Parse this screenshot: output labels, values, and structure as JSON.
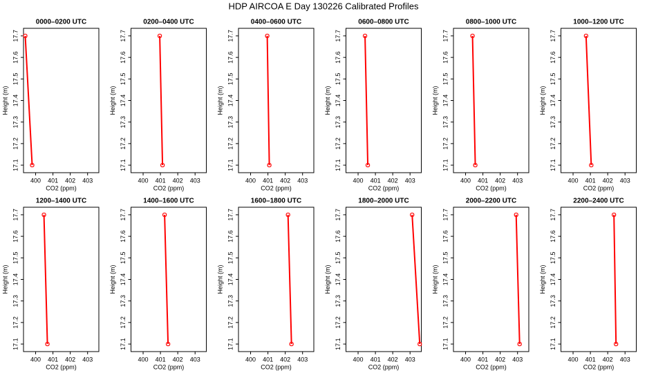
{
  "title": "HDP AIRCOA E  Day 130226  Calibrated Profiles",
  "chart_data": [
    {
      "type": "line",
      "title": "0000–0200 UTC",
      "x_label": "CO2 (ppm)",
      "y_label": "Height (m)",
      "series": [
        {
          "color": "#ff0000",
          "x": [
            399.4,
            399.8
          ],
          "values": [
            17.7,
            17.1
          ]
        }
      ],
      "xlim": [
        399.3,
        403.65
      ],
      "ylim": [
        17.065,
        17.735
      ],
      "xticks": [
        400,
        401,
        402,
        403
      ],
      "yticks": [
        17.1,
        17.2,
        17.3,
        17.4,
        17.5,
        17.6,
        17.7
      ]
    },
    {
      "type": "line",
      "title": "0200–0400 UTC",
      "x_label": "CO2 (ppm)",
      "y_label": "Height (m)",
      "series": [
        {
          "color": "#ff0000",
          "x": [
            400.96,
            401.12
          ],
          "values": [
            17.7,
            17.1
          ]
        }
      ],
      "xlim": [
        399.3,
        403.65
      ],
      "ylim": [
        17.065,
        17.735
      ],
      "xticks": [
        400,
        401,
        402,
        403
      ],
      "yticks": [
        17.1,
        17.2,
        17.3,
        17.4,
        17.5,
        17.6,
        17.7
      ]
    },
    {
      "type": "line",
      "title": "0400–0600 UTC",
      "x_label": "CO2 (ppm)",
      "y_label": "Height (m)",
      "series": [
        {
          "color": "#ff0000",
          "x": [
            400.96,
            401.08
          ],
          "values": [
            17.7,
            17.1
          ]
        }
      ],
      "xlim": [
        399.3,
        403.65
      ],
      "ylim": [
        17.065,
        17.735
      ],
      "xticks": [
        400,
        401,
        402,
        403
      ],
      "yticks": [
        17.1,
        17.2,
        17.3,
        17.4,
        17.5,
        17.6,
        17.7
      ]
    },
    {
      "type": "line",
      "title": "0600–0800 UTC",
      "x_label": "CO2 (ppm)",
      "y_label": "Height (m)",
      "series": [
        {
          "color": "#ff0000",
          "x": [
            400.4,
            400.56
          ],
          "values": [
            17.7,
            17.1
          ]
        }
      ],
      "xlim": [
        399.3,
        403.65
      ],
      "ylim": [
        17.065,
        17.735
      ],
      "xticks": [
        400,
        401,
        402,
        403
      ],
      "yticks": [
        17.1,
        17.2,
        17.3,
        17.4,
        17.5,
        17.6,
        17.7
      ]
    },
    {
      "type": "line",
      "title": "0800–1000 UTC",
      "x_label": "CO2 (ppm)",
      "y_label": "Height (m)",
      "series": [
        {
          "color": "#ff0000",
          "x": [
            400.4,
            400.56
          ],
          "values": [
            17.7,
            17.1
          ]
        }
      ],
      "xlim": [
        399.3,
        403.65
      ],
      "ylim": [
        17.065,
        17.735
      ],
      "xticks": [
        400,
        401,
        402,
        403
      ],
      "yticks": [
        17.1,
        17.2,
        17.3,
        17.4,
        17.5,
        17.6,
        17.7
      ]
    },
    {
      "type": "line",
      "title": "1000–1200 UTC",
      "x_label": "CO2 (ppm)",
      "y_label": "Height (m)",
      "series": [
        {
          "color": "#ff0000",
          "x": [
            400.75,
            401.05
          ],
          "values": [
            17.7,
            17.1
          ]
        }
      ],
      "xlim": [
        399.3,
        403.65
      ],
      "ylim": [
        17.065,
        17.735
      ],
      "xticks": [
        400,
        401,
        402,
        403
      ],
      "yticks": [
        17.1,
        17.2,
        17.3,
        17.4,
        17.5,
        17.6,
        17.7
      ]
    },
    {
      "type": "line",
      "title": "1200–1400 UTC",
      "x_label": "CO2 (ppm)",
      "y_label": "Height (m)",
      "series": [
        {
          "color": "#ff0000",
          "x": [
            400.48,
            400.68
          ],
          "values": [
            17.7,
            17.1
          ]
        }
      ],
      "xlim": [
        399.3,
        403.65
      ],
      "ylim": [
        17.065,
        17.735
      ],
      "xticks": [
        400,
        401,
        402,
        403
      ],
      "yticks": [
        17.1,
        17.2,
        17.3,
        17.4,
        17.5,
        17.6,
        17.7
      ]
    },
    {
      "type": "line",
      "title": "1400–1600 UTC",
      "x_label": "CO2 (ppm)",
      "y_label": "Height (m)",
      "series": [
        {
          "color": "#ff0000",
          "x": [
            401.24,
            401.44
          ],
          "values": [
            17.7,
            17.1
          ]
        }
      ],
      "xlim": [
        399.3,
        403.65
      ],
      "ylim": [
        17.065,
        17.735
      ],
      "xticks": [
        400,
        401,
        402,
        403
      ],
      "yticks": [
        17.1,
        17.2,
        17.3,
        17.4,
        17.5,
        17.6,
        17.7
      ]
    },
    {
      "type": "line",
      "title": "1600–1800 UTC",
      "x_label": "CO2 (ppm)",
      "y_label": "Height (m)",
      "series": [
        {
          "color": "#ff0000",
          "x": [
            402.16,
            402.36
          ],
          "values": [
            17.7,
            17.1
          ]
        }
      ],
      "xlim": [
        399.3,
        403.65
      ],
      "ylim": [
        17.065,
        17.735
      ],
      "xticks": [
        400,
        401,
        402,
        403
      ],
      "yticks": [
        17.1,
        17.2,
        17.3,
        17.4,
        17.5,
        17.6,
        17.7
      ]
    },
    {
      "type": "line",
      "title": "1800–2000 UTC",
      "x_label": "CO2 (ppm)",
      "y_label": "Height (m)",
      "series": [
        {
          "color": "#ff0000",
          "x": [
            403.12,
            403.56
          ],
          "values": [
            17.7,
            17.1
          ]
        }
      ],
      "xlim": [
        399.3,
        403.65
      ],
      "ylim": [
        17.065,
        17.735
      ],
      "xticks": [
        400,
        401,
        402,
        403
      ],
      "yticks": [
        17.1,
        17.2,
        17.3,
        17.4,
        17.5,
        17.6,
        17.7
      ]
    },
    {
      "type": "line",
      "title": "2000–2200 UTC",
      "x_label": "CO2 (ppm)",
      "y_label": "Height (m)",
      "series": [
        {
          "color": "#ff0000",
          "x": [
            402.92,
            403.12
          ],
          "values": [
            17.7,
            17.1
          ]
        }
      ],
      "xlim": [
        399.3,
        403.65
      ],
      "ylim": [
        17.065,
        17.735
      ],
      "xticks": [
        400,
        401,
        402,
        403
      ],
      "yticks": [
        17.1,
        17.2,
        17.3,
        17.4,
        17.5,
        17.6,
        17.7
      ]
    },
    {
      "type": "line",
      "title": "2200–2400 UTC",
      "x_label": "CO2 (ppm)",
      "y_label": "Height (m)",
      "series": [
        {
          "color": "#ff0000",
          "x": [
            402.36,
            402.48
          ],
          "values": [
            17.7,
            17.1
          ]
        }
      ],
      "xlim": [
        399.3,
        403.65
      ],
      "ylim": [
        17.065,
        17.735
      ],
      "xticks": [
        400,
        401,
        402,
        403
      ],
      "yticks": [
        17.1,
        17.2,
        17.3,
        17.4,
        17.5,
        17.6,
        17.7
      ]
    }
  ]
}
